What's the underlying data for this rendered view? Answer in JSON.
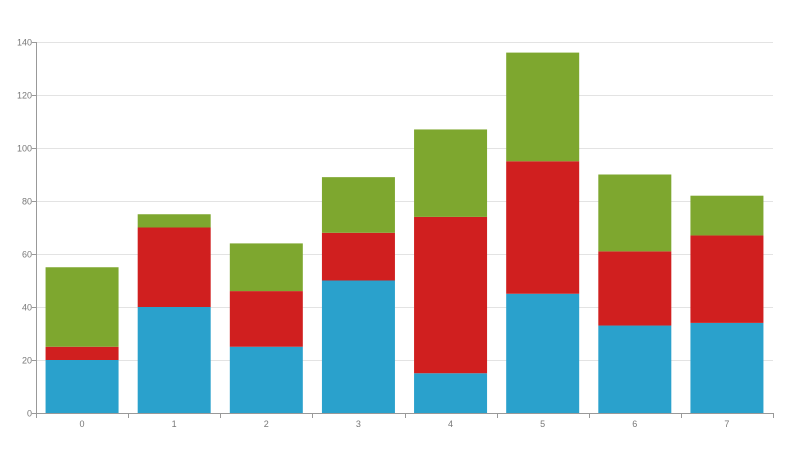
{
  "chart_data": {
    "type": "bar",
    "stacked": true,
    "categories": [
      "0",
      "1",
      "2",
      "3",
      "4",
      "5",
      "6",
      "7"
    ],
    "series": [
      {
        "color": "#2aa1cc",
        "values": [
          20,
          40,
          25,
          50,
          15,
          45,
          33,
          34
        ]
      },
      {
        "color": "#d01f1f",
        "values": [
          5,
          30,
          21,
          18,
          59,
          50,
          28,
          33
        ]
      },
      {
        "color": "#7ea72f",
        "values": [
          30,
          5,
          18,
          21,
          33,
          41,
          29,
          15
        ]
      }
    ],
    "y_ticks": [
      "0",
      "20",
      "40",
      "60",
      "80",
      "100",
      "120",
      "140"
    ],
    "ylim": [
      0,
      140
    ],
    "grid": true,
    "legend": "none"
  }
}
